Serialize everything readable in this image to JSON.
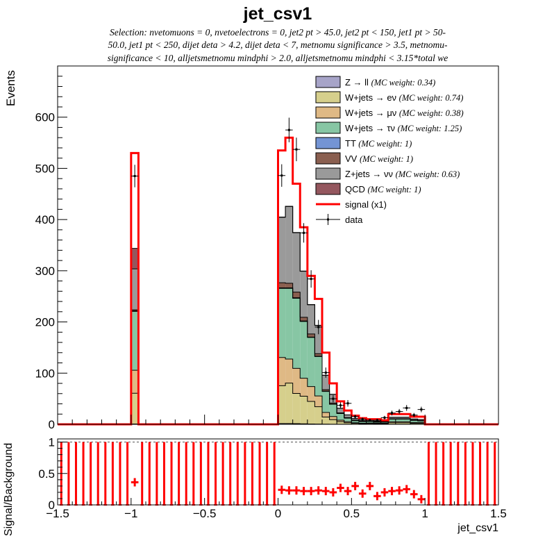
{
  "chart_data": {
    "type": "bar",
    "title": "jet_csv1",
    "subtitle_lines": [
      "Selection: nvetomuons = 0, nvetoelectrons = 0, jet2 pt > 45.0, jet2 pt < 150, jet1 pt > 50-",
      "50.0, jet1 pt < 250, dijet deta > 4.2, dijet deta < 7, metnomu significance > 3.5, metnomu-",
      "significance < 10, alljetsmetnomu mindphi > 2.0, alljetsmetnomu mindphi < 3.15*total we"
    ],
    "xlabel": "jet_csv1",
    "ylabel": "Events",
    "ratio_ylabel": "Signal/Background",
    "xlim": [
      -1.5,
      1.5
    ],
    "ylim": [
      0,
      700
    ],
    "ratio_ylim": [
      0,
      1.05
    ],
    "x_ticks": [
      "−1.5",
      "−1",
      "−0.5",
      "0",
      "0.5",
      "1",
      "1.5"
    ],
    "y_ticks": [
      "0",
      "100",
      "200",
      "300",
      "400",
      "500",
      "600"
    ],
    "ratio_y_ticks": [
      "0",
      "0.5",
      "1"
    ],
    "bin_edges": [
      -1.5,
      -1.45,
      -1.4,
      -1.35,
      -1.3,
      -1.25,
      -1.2,
      -1.15,
      -1.1,
      -1.05,
      -1.0,
      -0.95,
      -0.9,
      -0.85,
      -0.8,
      -0.75,
      -0.7,
      -0.65,
      -0.6,
      -0.55,
      -0.5,
      -0.45,
      -0.4,
      -0.35,
      -0.3,
      -0.25,
      -0.2,
      -0.15,
      -0.1,
      -0.05,
      0.0,
      0.05,
      0.1,
      0.15,
      0.2,
      0.25,
      0.3,
      0.35,
      0.4,
      0.45,
      0.5,
      0.55,
      0.6,
      0.65,
      0.7,
      0.75,
      0.8,
      0.85,
      0.9,
      0.95,
      1.0,
      1.05,
      1.1,
      1.15,
      1.2,
      1.25,
      1.3,
      1.35,
      1.4,
      1.45,
      1.5
    ],
    "backgrounds": [
      {
        "name": "Z → ll",
        "weight_label": "(MC weight: 0.34)",
        "color": "#a7a4c8",
        "bins": [
          [
            10,
            0.7
          ],
          [
            30,
            1.5
          ],
          [
            31,
            1.5
          ],
          [
            32,
            1.3
          ],
          [
            33,
            1
          ],
          [
            34,
            0.7
          ],
          [
            35,
            0.5
          ],
          [
            36,
            0.3
          ],
          [
            37,
            0.2
          ],
          [
            38,
            0.2
          ],
          [
            39,
            0.1
          ],
          [
            40,
            0.1
          ],
          [
            41,
            0.1
          ],
          [
            42,
            0.1
          ],
          [
            43,
            0.1
          ],
          [
            44,
            0.1
          ],
          [
            45,
            0.1
          ],
          [
            46,
            0.1
          ],
          [
            47,
            0.1
          ],
          [
            48,
            0.1
          ],
          [
            49,
            0.1
          ]
        ]
      },
      {
        "name": "W+jets → eν",
        "weight_label": "(MC weight: 0.74)",
        "color": "#d6cf8c",
        "bins": [
          [
            10,
            60
          ],
          [
            30,
            74
          ],
          [
            31,
            79
          ],
          [
            32,
            59
          ],
          [
            33,
            54
          ],
          [
            34,
            44
          ],
          [
            35,
            34
          ],
          [
            36,
            14
          ],
          [
            37,
            9
          ],
          [
            38,
            5
          ],
          [
            39,
            3
          ],
          [
            40,
            2
          ],
          [
            41,
            1
          ],
          [
            42,
            1.5
          ],
          [
            43,
            1
          ],
          [
            44,
            1
          ],
          [
            45,
            3
          ],
          [
            46,
            3
          ],
          [
            47,
            3
          ],
          [
            48,
            2
          ],
          [
            49,
            2
          ]
        ]
      },
      {
        "name": "W+jets → μν",
        "weight_label": "(MC weight: 0.38)",
        "color": "#dfb985",
        "bins": [
          [
            10,
            45
          ],
          [
            30,
            55
          ],
          [
            31,
            47
          ],
          [
            32,
            49
          ],
          [
            33,
            35
          ],
          [
            34,
            29
          ],
          [
            35,
            21
          ],
          [
            36,
            9
          ],
          [
            37,
            6
          ],
          [
            38,
            3
          ],
          [
            39,
            2
          ],
          [
            40,
            1
          ],
          [
            41,
            1
          ],
          [
            42,
            1
          ],
          [
            43,
            1
          ],
          [
            44,
            1
          ],
          [
            45,
            2
          ],
          [
            46,
            2
          ],
          [
            47,
            2
          ],
          [
            48,
            1.5
          ],
          [
            49,
            1.5
          ]
        ]
      },
      {
        "name": "W+jets → τν",
        "weight_label": "(MC weight: 1.25)",
        "color": "#87c6a4",
        "bins": [
          [
            10,
            115
          ],
          [
            30,
            135
          ],
          [
            31,
            138
          ],
          [
            32,
            137
          ],
          [
            33,
            111
          ],
          [
            34,
            96
          ],
          [
            35,
            77
          ],
          [
            36,
            41
          ],
          [
            37,
            24
          ],
          [
            38,
            13
          ],
          [
            39,
            7
          ],
          [
            40,
            4
          ],
          [
            41,
            3
          ],
          [
            42,
            3
          ],
          [
            43,
            2
          ],
          [
            44,
            2
          ],
          [
            45,
            5
          ],
          [
            46,
            5
          ],
          [
            47,
            5
          ],
          [
            48,
            4
          ],
          [
            49,
            3
          ]
        ]
      },
      {
        "name": "TT",
        "weight_label": "(MC weight: 1)",
        "color": "#7494d4",
        "bins": [
          [
            10,
            1
          ],
          [
            30,
            1
          ],
          [
            31,
            1
          ],
          [
            32,
            1
          ],
          [
            33,
            1
          ],
          [
            34,
            0.8
          ],
          [
            35,
            0.6
          ],
          [
            36,
            0.4
          ],
          [
            37,
            0.3
          ],
          [
            38,
            0.2
          ],
          [
            39,
            0.2
          ],
          [
            40,
            0.1
          ],
          [
            41,
            0.1
          ],
          [
            42,
            0.1
          ],
          [
            43,
            0.1
          ],
          [
            44,
            0.1
          ],
          [
            45,
            0.2
          ],
          [
            46,
            0.2
          ],
          [
            47,
            0.2
          ],
          [
            48,
            0.2
          ],
          [
            49,
            0.2
          ]
        ]
      },
      {
        "name": "VV",
        "weight_label": "(MC weight: 1)",
        "color": "#8a5f50",
        "bins": [
          [
            10,
            2
          ],
          [
            30,
            10
          ],
          [
            31,
            9
          ],
          [
            32,
            11
          ],
          [
            33,
            7
          ],
          [
            34,
            6
          ],
          [
            35,
            5
          ],
          [
            36,
            3
          ],
          [
            37,
            2
          ],
          [
            38,
            1
          ],
          [
            39,
            1
          ],
          [
            40,
            1
          ],
          [
            41,
            0.5
          ],
          [
            42,
            0.5
          ],
          [
            43,
            0.5
          ],
          [
            44,
            0.5
          ],
          [
            45,
            0.5
          ],
          [
            46,
            0.5
          ],
          [
            47,
            0.5
          ],
          [
            48,
            0.5
          ],
          [
            49,
            0.5
          ]
        ]
      },
      {
        "name": "Z+jets → νν",
        "weight_label": "(MC weight: 0.63)",
        "color": "#9a9a9a",
        "bins": [
          [
            10,
            80
          ],
          [
            30,
            128
          ],
          [
            31,
            150
          ],
          [
            32,
            116
          ],
          [
            33,
            90
          ],
          [
            34,
            57
          ],
          [
            35,
            55
          ],
          [
            36,
            28
          ],
          [
            37,
            17
          ],
          [
            38,
            9
          ],
          [
            39,
            5
          ],
          [
            40,
            3
          ],
          [
            41,
            2
          ],
          [
            42,
            2
          ],
          [
            43,
            1.5
          ],
          [
            44,
            1.5
          ],
          [
            45,
            3
          ],
          [
            46,
            3
          ],
          [
            47,
            3
          ],
          [
            48,
            2
          ],
          [
            49,
            2
          ]
        ]
      },
      {
        "name": "QCD",
        "weight_label": "(MC weight: 1)",
        "color": "#94575e",
        "bins": [
          [
            10,
            40
          ],
          [
            30,
            0.5
          ],
          [
            31,
            0.5
          ],
          [
            32,
            0.5
          ],
          [
            33,
            0.5
          ],
          [
            34,
            0.5
          ],
          [
            35,
            0.3
          ],
          [
            36,
            0.2
          ],
          [
            37,
            0.1
          ],
          [
            38,
            0.1
          ],
          [
            39,
            0.1
          ],
          [
            40,
            0.1
          ],
          [
            41,
            0.1
          ],
          [
            42,
            0.1
          ],
          [
            43,
            0.1
          ],
          [
            44,
            0.1
          ],
          [
            45,
            0.1
          ],
          [
            46,
            0.1
          ],
          [
            47,
            0.1
          ],
          [
            48,
            0.1
          ],
          [
            49,
            0.1
          ]
        ]
      }
    ],
    "signal": {
      "name": "signal (x1)",
      "color": "#ff0000",
      "bins": [
        [
          10,
          530
        ],
        [
          30,
          535
        ],
        [
          31,
          560
        ],
        [
          32,
          470
        ],
        [
          33,
          385
        ],
        [
          34,
          290
        ],
        [
          35,
          245
        ],
        [
          36,
          140
        ],
        [
          37,
          80
        ],
        [
          38,
          45
        ],
        [
          39,
          27
        ],
        [
          40,
          17
        ],
        [
          41,
          12
        ],
        [
          42,
          10
        ],
        [
          43,
          10
        ],
        [
          44,
          8
        ],
        [
          45,
          20
        ],
        [
          46,
          20
        ],
        [
          47,
          20
        ],
        [
          48,
          15
        ],
        [
          49,
          15
        ]
      ]
    },
    "data": {
      "name": "data",
      "points": [
        [
          10,
          485,
          22
        ],
        [
          30,
          486,
          22
        ],
        [
          31,
          575,
          24
        ],
        [
          32,
          537,
          23
        ],
        [
          33,
          374,
          19
        ],
        [
          34,
          284,
          17
        ],
        [
          35,
          190,
          14
        ],
        [
          36,
          101,
          10
        ],
        [
          37,
          50,
          7
        ],
        [
          38,
          37,
          6
        ],
        [
          39,
          41,
          6.4
        ],
        [
          40,
          15,
          4
        ],
        [
          41,
          10,
          3.2
        ],
        [
          42,
          8,
          2.8
        ],
        [
          43,
          8,
          2.8
        ],
        [
          44,
          13,
          3.6
        ],
        [
          45,
          22,
          4.7
        ],
        [
          46,
          25,
          5
        ],
        [
          47,
          32,
          5.7
        ],
        [
          48,
          18,
          4.2
        ],
        [
          49,
          29,
          5.4
        ]
      ]
    },
    "ratio": {
      "points": [
        [
          10,
          0.36
        ],
        [
          30,
          0.24
        ],
        [
          31,
          0.23
        ],
        [
          32,
          0.23
        ],
        [
          33,
          0.22
        ],
        [
          34,
          0.22
        ],
        [
          35,
          0.23
        ],
        [
          36,
          0.22
        ],
        [
          37,
          0.2
        ],
        [
          38,
          0.27
        ],
        [
          39,
          0.22
        ],
        [
          40,
          0.3
        ],
        [
          41,
          0.18
        ],
        [
          42,
          0.3
        ],
        [
          43,
          0.14
        ],
        [
          44,
          0.2
        ],
        [
          45,
          0.22
        ],
        [
          46,
          0.23
        ],
        [
          47,
          0.25
        ],
        [
          48,
          0.17
        ],
        [
          49,
          0.09
        ]
      ],
      "unit_bins": [
        0,
        1,
        2,
        3,
        4,
        5,
        6,
        7,
        8,
        9,
        11,
        12,
        13,
        14,
        15,
        16,
        17,
        18,
        19,
        20,
        21,
        22,
        23,
        24,
        25,
        26,
        27,
        28,
        29,
        50,
        51,
        52,
        53,
        54,
        55,
        56,
        57,
        58,
        59
      ]
    },
    "legend_position": "top-right"
  }
}
